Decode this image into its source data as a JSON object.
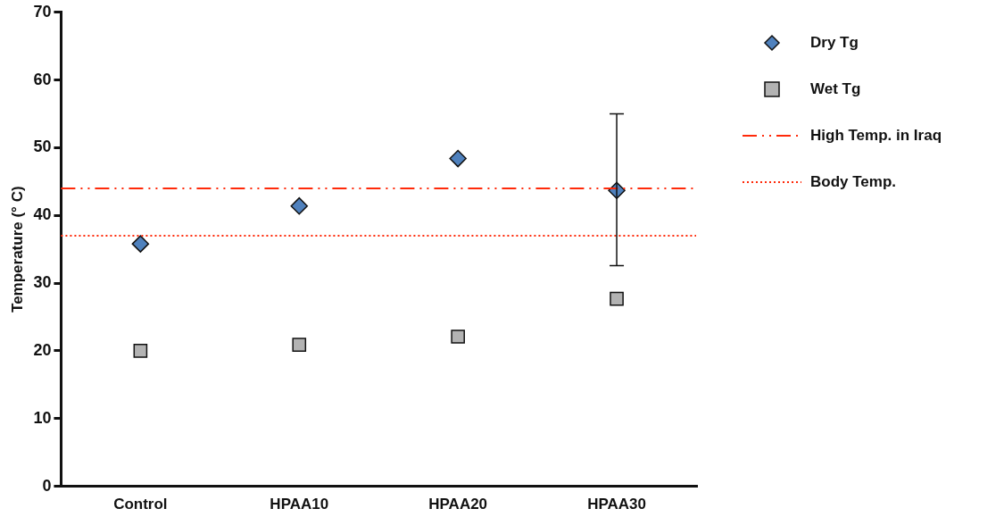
{
  "chart_data": {
    "type": "scatter",
    "ylabel": "Temperature (° C)",
    "categories": [
      "Control",
      "HPAA10",
      "HPAA20",
      "HPAA30"
    ],
    "series": [
      {
        "name": "Dry Tg",
        "color": "#4f81bd",
        "marker": "diamond",
        "values": [
          35.8,
          41.4,
          48.4,
          43.7
        ],
        "errors": [
          null,
          null,
          null,
          [
            32.6,
            55.0
          ]
        ]
      },
      {
        "name": "Wet Tg",
        "color": "#b3b3b3",
        "marker": "square",
        "values": [
          20.0,
          20.9,
          22.1,
          27.7
        ]
      }
    ],
    "ylim": [
      0,
      70
    ],
    "yticks": [
      0,
      10,
      20,
      30,
      40,
      50,
      60,
      70
    ],
    "grid": false,
    "legend": "right",
    "ref_lines": [
      {
        "axis": "y",
        "value": 44,
        "label": "High Temp. in Iraq",
        "color": "#ff2a0a",
        "line_style": "dashed"
      },
      {
        "axis": "y",
        "value": 37,
        "label": "Body Temp.",
        "color": "#ff2a0a",
        "line_style": "dotted"
      }
    ]
  }
}
